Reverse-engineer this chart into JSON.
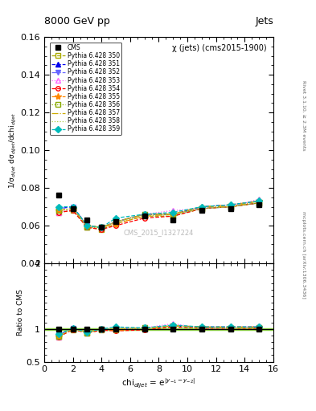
{
  "title_top": "8000 GeV pp",
  "title_right": "Jets",
  "plot_title": "χ (jets) (cms2015-1900)",
  "watermark": "CMS_2015_I1327224",
  "right_label_top": "Rivet 3.1.10, ≥ 2.3M events",
  "right_label_bot": "mcplots.cern.ch [arXiv:1306.3436]",
  "xlabel": "chi$_{dijet}$ = e$^{|y_{-1}-y_{-2}|}$",
  "ylabel_main": "1/σ$_{dijet}$ dσ$_{dijet}$/dchi$_{dijet}$",
  "ylabel_ratio": "Ratio to CMS",
  "ylim_main": [
    0.04,
    0.16
  ],
  "ylim_ratio": [
    0.5,
    2.0
  ],
  "xlim": [
    0,
    16
  ],
  "yticks_main": [
    0.04,
    0.06,
    0.08,
    0.1,
    0.12,
    0.14,
    0.16
  ],
  "yticks_ratio": [
    0.5,
    1.0,
    2.0
  ],
  "cms_x": [
    1,
    2,
    3,
    4,
    5,
    7,
    9,
    11,
    13,
    15
  ],
  "cms_y": [
    0.076,
    0.069,
    0.063,
    0.059,
    0.062,
    0.065,
    0.063,
    0.068,
    0.069,
    0.071
  ],
  "series": [
    {
      "label": "Pythia 6.428 350",
      "color": "#aaaa00",
      "linestyle": "--",
      "marker": "s",
      "markerfilled": false,
      "x": [
        1,
        2,
        3,
        4,
        5,
        7,
        9,
        11,
        13,
        15
      ],
      "y": [
        0.067,
        0.068,
        0.059,
        0.058,
        0.061,
        0.065,
        0.065,
        0.069,
        0.07,
        0.072
      ],
      "ratio": [
        0.88,
        0.99,
        0.94,
        0.98,
        0.98,
        1.0,
        1.03,
        1.01,
        1.01,
        1.01
      ]
    },
    {
      "label": "Pythia 6.428 351",
      "color": "#0000ee",
      "linestyle": "--",
      "marker": "^",
      "markerfilled": true,
      "x": [
        1,
        2,
        3,
        4,
        5,
        7,
        9,
        11,
        13,
        15
      ],
      "y": [
        0.069,
        0.07,
        0.06,
        0.059,
        0.062,
        0.066,
        0.066,
        0.07,
        0.071,
        0.073
      ],
      "ratio": [
        0.91,
        1.01,
        0.95,
        1.0,
        1.0,
        1.015,
        1.045,
        1.03,
        1.03,
        1.03
      ]
    },
    {
      "label": "Pythia 6.428 352",
      "color": "#6666ff",
      "linestyle": "-.",
      "marker": "v",
      "markerfilled": true,
      "x": [
        1,
        2,
        3,
        4,
        5,
        7,
        9,
        11,
        13,
        15
      ],
      "y": [
        0.069,
        0.07,
        0.06,
        0.059,
        0.062,
        0.066,
        0.066,
        0.069,
        0.07,
        0.072
      ],
      "ratio": [
        0.91,
        1.01,
        0.95,
        1.0,
        1.0,
        1.015,
        1.045,
        1.01,
        1.01,
        1.02
      ]
    },
    {
      "label": "Pythia 6.428 353",
      "color": "#ff66ff",
      "linestyle": ":",
      "marker": "^",
      "markerfilled": false,
      "x": [
        1,
        2,
        3,
        4,
        5,
        7,
        9,
        11,
        13,
        15
      ],
      "y": [
        0.067,
        0.069,
        0.059,
        0.059,
        0.062,
        0.066,
        0.068,
        0.069,
        0.07,
        0.074
      ],
      "ratio": [
        0.88,
        1.0,
        0.94,
        1.0,
        1.0,
        1.015,
        1.08,
        1.01,
        1.01,
        1.04
      ]
    },
    {
      "label": "Pythia 6.428 354",
      "color": "#ff0000",
      "linestyle": "--",
      "marker": "o",
      "markerfilled": false,
      "x": [
        1,
        2,
        3,
        4,
        5,
        7,
        9,
        11,
        13,
        15
      ],
      "y": [
        0.067,
        0.068,
        0.059,
        0.058,
        0.06,
        0.064,
        0.065,
        0.069,
        0.07,
        0.072
      ],
      "ratio": [
        0.88,
        0.99,
        0.94,
        0.98,
        0.97,
        0.985,
        1.03,
        1.01,
        1.01,
        1.01
      ]
    },
    {
      "label": "Pythia 6.428 355",
      "color": "#ff8800",
      "linestyle": "-.",
      "marker": "*",
      "markerfilled": true,
      "x": [
        1,
        2,
        3,
        4,
        5,
        7,
        9,
        11,
        13,
        15
      ],
      "y": [
        0.068,
        0.069,
        0.06,
        0.059,
        0.061,
        0.065,
        0.066,
        0.07,
        0.071,
        0.073
      ],
      "ratio": [
        0.89,
        1.0,
        0.95,
        1.0,
        0.98,
        1.0,
        1.05,
        1.03,
        1.03,
        1.03
      ]
    },
    {
      "label": "Pythia 6.428 356",
      "color": "#88aa00",
      "linestyle": ":",
      "marker": "s",
      "markerfilled": false,
      "x": [
        1,
        2,
        3,
        4,
        5,
        7,
        9,
        11,
        13,
        15
      ],
      "y": [
        0.068,
        0.069,
        0.059,
        0.059,
        0.062,
        0.066,
        0.066,
        0.069,
        0.07,
        0.072
      ],
      "ratio": [
        0.89,
        1.0,
        0.94,
        1.0,
        1.0,
        1.015,
        1.045,
        1.01,
        1.01,
        1.02
      ]
    },
    {
      "label": "Pythia 6.428 357",
      "color": "#ccaa00",
      "linestyle": "-.",
      "marker": "None",
      "markerfilled": false,
      "x": [
        1,
        2,
        3,
        4,
        5,
        7,
        9,
        11,
        13,
        15
      ],
      "y": [
        0.068,
        0.069,
        0.06,
        0.059,
        0.062,
        0.066,
        0.066,
        0.07,
        0.07,
        0.073
      ],
      "ratio": [
        0.89,
        1.0,
        0.95,
        1.0,
        1.0,
        1.015,
        1.045,
        1.03,
        1.01,
        1.03
      ]
    },
    {
      "label": "Pythia 6.428 358",
      "color": "#aacc44",
      "linestyle": ":",
      "marker": "None",
      "markerfilled": false,
      "x": [
        1,
        2,
        3,
        4,
        5,
        7,
        9,
        11,
        13,
        15
      ],
      "y": [
        0.068,
        0.069,
        0.06,
        0.059,
        0.062,
        0.065,
        0.066,
        0.069,
        0.07,
        0.072
      ],
      "ratio": [
        0.89,
        1.0,
        0.95,
        1.0,
        1.0,
        1.0,
        1.045,
        1.01,
        1.01,
        1.02
      ]
    },
    {
      "label": "Pythia 6.428 359",
      "color": "#00bbbb",
      "linestyle": "--",
      "marker": "D",
      "markerfilled": true,
      "x": [
        1,
        2,
        3,
        4,
        5,
        7,
        9,
        11,
        13,
        15
      ],
      "y": [
        0.07,
        0.07,
        0.06,
        0.059,
        0.064,
        0.066,
        0.067,
        0.07,
        0.071,
        0.073
      ],
      "ratio": [
        0.92,
        1.01,
        0.95,
        1.0,
        1.03,
        1.015,
        1.06,
        1.03,
        1.03,
        1.03
      ]
    }
  ]
}
